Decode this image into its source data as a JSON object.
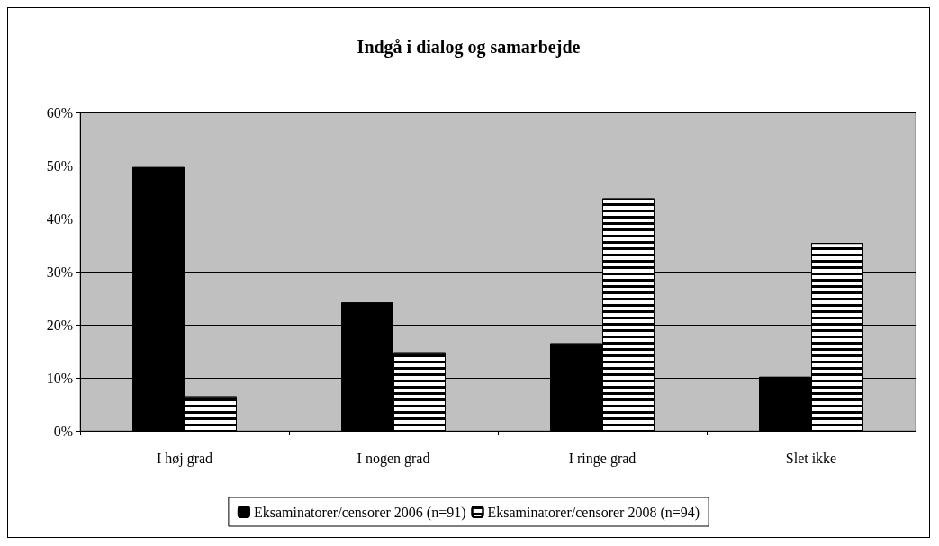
{
  "chart_data": {
    "type": "bar",
    "title": "Indgå i dialog og samarbejde",
    "categories": [
      "I høj grad",
      "I nogen grad",
      "I ringe grad",
      "Slet ikke"
    ],
    "series": [
      {
        "name": "Eksaminatorer/censorer 2006 (n=91)",
        "color": "#000000",
        "values": [
          49.7,
          24.2,
          16.5,
          10.2
        ]
      },
      {
        "name": "Eksaminatorer/censorer 2008 (n=94)",
        "color": "#ffffff",
        "values": [
          6.5,
          14.8,
          43.8,
          35.4
        ]
      }
    ],
    "ylim": [
      0,
      60
    ],
    "yticks": [
      {
        "value": 0,
        "label": "0%"
      },
      {
        "value": 10,
        "label": "10%"
      },
      {
        "value": 20,
        "label": "20%"
      },
      {
        "value": 30,
        "label": "30%"
      },
      {
        "value": 40,
        "label": "40%"
      },
      {
        "value": 50,
        "label": "50%"
      },
      {
        "value": 60,
        "label": "60%"
      }
    ],
    "grid": "y",
    "legend": "bottom"
  }
}
